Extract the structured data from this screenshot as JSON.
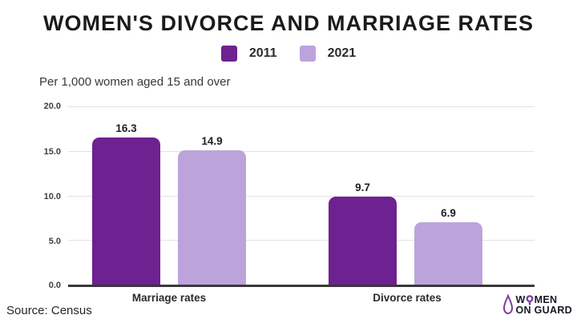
{
  "chart_data": {
    "type": "bar",
    "title": "WOMEN'S DIVORCE AND MARRIAGE RATES",
    "subtitle": "Per 1,000 women aged 15 and over",
    "categories": [
      "Marriage rates",
      "Divorce rates"
    ],
    "series": [
      {
        "name": "2011",
        "color": "#6E2190",
        "values": [
          16.3,
          9.7
        ],
        "labels": [
          "16.3",
          "9.7"
        ]
      },
      {
        "name": "2021",
        "color": "#BCA3DC",
        "values": [
          14.9,
          6.9
        ],
        "labels": [
          "14.9",
          "6.9"
        ]
      }
    ],
    "ylim": [
      0,
      20
    ],
    "yticks": [
      "20.0",
      "15.0",
      "10.0",
      "5.0",
      "0.0"
    ],
    "grid": true,
    "legend_position": "top-center"
  },
  "footer": {
    "source": "Source: Census",
    "logo_line1_pre": "W",
    "logo_line1_post": "MEN",
    "logo_line2": "ON GUARD",
    "logo_color": "#7B3FA5"
  }
}
